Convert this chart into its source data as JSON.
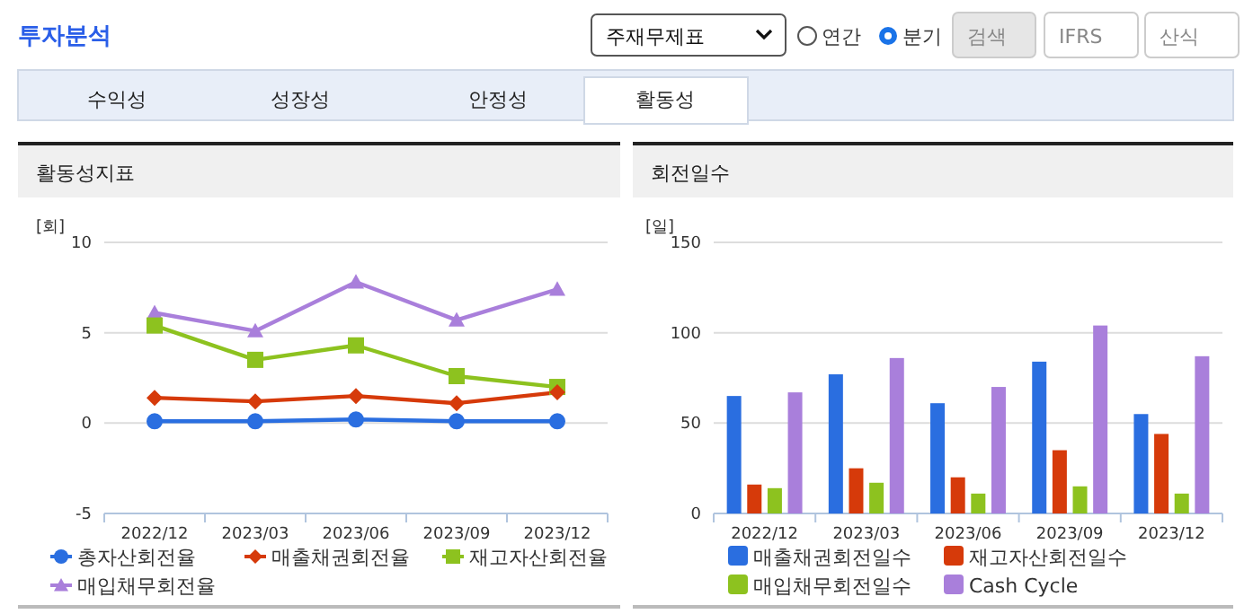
{
  "chart_data": [
    {
      "type": "line",
      "title": "활동성지표",
      "ylabel": "[회]",
      "annotations": [
        "투자분석",
        "주재무제표",
        "연간",
        "분기",
        "검색",
        "IFRS",
        "산식",
        "수익성",
        "성장성",
        "안정성",
        "활동성"
      ],
      "categories": [
        "2022/12",
        "2023/03",
        "2023/06",
        "2023/09",
        "2023/12"
      ],
      "series": [
        {
          "name": "총자산회전율",
          "color": "#2a6ee0",
          "marker": "circle",
          "values": [
            0.1,
            0.1,
            0.2,
            0.1,
            0.1
          ]
        },
        {
          "name": "매출채권회전율",
          "color": "#d63a0a",
          "marker": "diamond",
          "values": [
            1.4,
            1.2,
            1.5,
            1.1,
            1.7
          ]
        },
        {
          "name": "재고자산회전율",
          "color": "#8dc21f",
          "marker": "square",
          "values": [
            5.4,
            3.5,
            4.3,
            2.6,
            2.0
          ]
        },
        {
          "name": "매입채무회전율",
          "color": "#a97fdb",
          "marker": "triangle",
          "values": [
            6.1,
            5.1,
            7.8,
            5.7,
            7.4
          ]
        }
      ],
      "ylim": [
        -5,
        10
      ],
      "yticks": [
        -5,
        0,
        5,
        10
      ],
      "grid": "y",
      "legend": "bottom"
    },
    {
      "type": "bar",
      "title": "회전일수",
      "ylabel": "[일]",
      "categories": [
        "2022/12",
        "2023/03",
        "2023/06",
        "2023/09",
        "2023/12"
      ],
      "series": [
        {
          "name": "매출채권회전일수",
          "color": "#2a6ee0",
          "values": [
            65,
            77,
            61,
            84,
            55
          ]
        },
        {
          "name": "재고자산회전일수",
          "color": "#d63a0a",
          "values": [
            16,
            25,
            20,
            35,
            44
          ]
        },
        {
          "name": "매입채무회전일수",
          "color": "#8dc21f",
          "values": [
            14,
            17,
            11,
            15,
            11
          ]
        },
        {
          "name": "Cash Cycle",
          "color": "#a97fdb",
          "values": [
            67,
            86,
            70,
            104,
            87
          ]
        }
      ],
      "ylim": [
        0,
        150
      ],
      "yticks": [
        0,
        50,
        100,
        150
      ],
      "grid": "y",
      "legend": "bottom"
    }
  ]
}
